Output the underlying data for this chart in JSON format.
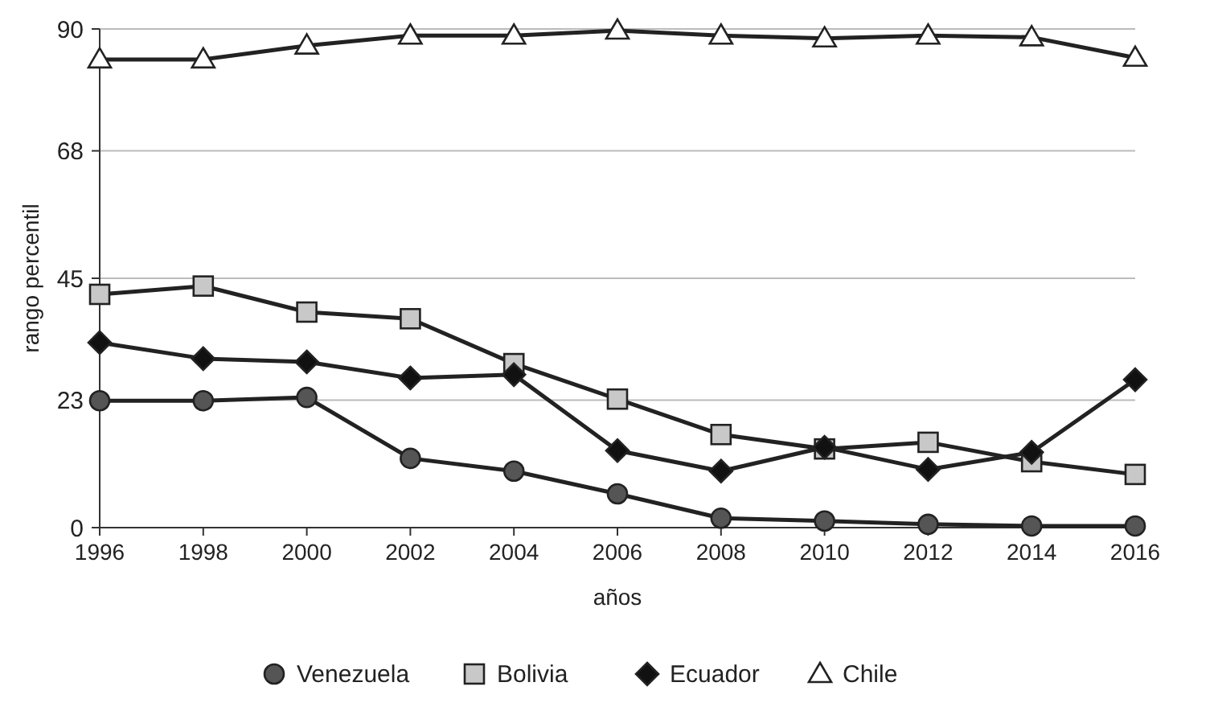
{
  "chart_data": {
    "type": "line",
    "xlabel": "años",
    "ylabel": "rango percentil",
    "x": [
      1996,
      1998,
      2000,
      2002,
      2004,
      2006,
      2008,
      2010,
      2012,
      2014,
      2016
    ],
    "xlim": [
      1996,
      2016
    ],
    "xticks": [
      1996,
      1998,
      2000,
      2002,
      2004,
      2006,
      2008,
      2010,
      2012,
      2014,
      2016
    ],
    "ylim": [
      0,
      90
    ],
    "yticks": [
      0,
      23,
      45,
      68,
      90
    ],
    "grid": "y",
    "legend": "bottom",
    "series": [
      {
        "name": "Venezuela",
        "color": "#555555",
        "marker": "circle",
        "values": [
          22.9,
          22.9,
          23.5,
          12.5,
          10.2,
          6.1,
          1.7,
          1.2,
          0.6,
          0.3,
          0.3
        ]
      },
      {
        "name": "Bolivia",
        "color": "#c8c8c8",
        "marker": "square",
        "values": [
          42.1,
          43.6,
          38.9,
          37.7,
          29.6,
          23.2,
          16.8,
          14.2,
          15.4,
          11.9,
          9.6
        ]
      },
      {
        "name": "Ecuador",
        "color": "#111111",
        "marker": "diamond",
        "values": [
          33.4,
          30.5,
          29.9,
          27,
          27.6,
          13.9,
          10.2,
          14.5,
          10.5,
          13.6,
          26.7
        ]
      },
      {
        "name": "Chile",
        "color": "#ffffff",
        "marker": "triangle",
        "values": [
          84.5,
          84.5,
          87,
          88.8,
          88.8,
          89.7,
          88.8,
          88.3,
          88.8,
          88.5,
          84.8
        ]
      }
    ]
  }
}
